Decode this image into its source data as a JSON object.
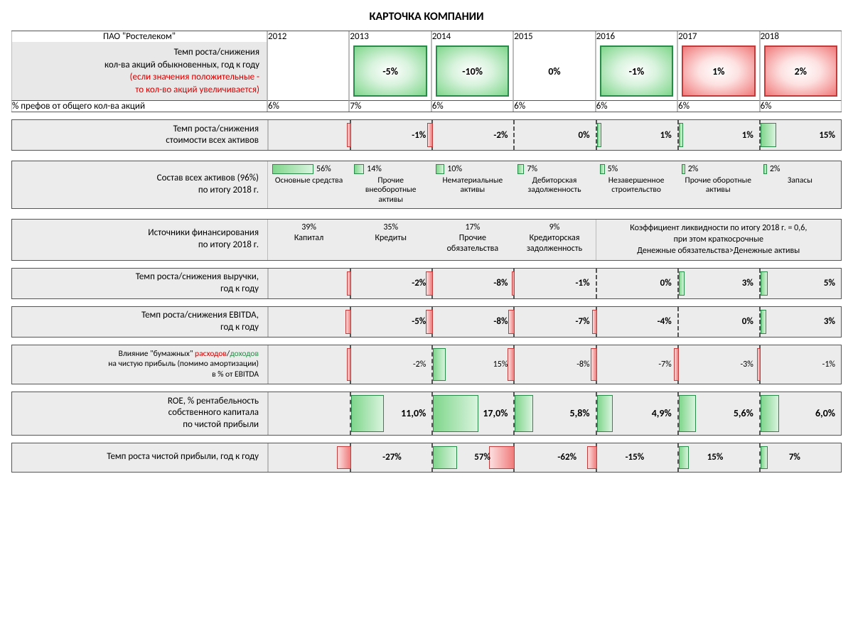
{
  "colors": {
    "green_fill": "#9ae09a",
    "green_border": "#2a8a4a",
    "green_grad_a": "#7fd68b",
    "green_grad_b": "#d9f3de",
    "red_fill": "#f59a9a",
    "red_border": "#c23a3a",
    "red_grad_a": "#f07a7a",
    "red_grad_b": "#fde1e1",
    "row_bg": "#ececec",
    "hdr_bg": "#e8e8e8"
  },
  "title": "КАРТОЧКА КОМПАНИИ",
  "company": "ПАО \"Ростелеком\"",
  "years": [
    "2012",
    "2013",
    "2014",
    "2015",
    "2016",
    "2017",
    "2018"
  ],
  "shares": {
    "label_1": "Темп роста/снижения",
    "label_2": "кол-ва акций обыкновенных,  год к году",
    "label_3": "(если значения положительные -",
    "label_4": "то кол-во акций увеличивается)",
    "vals": [
      "",
      "-5%",
      "-10%",
      "0%",
      "-1%",
      "1%",
      "2%"
    ],
    "colors": [
      "none",
      "green",
      "green",
      "none",
      "green",
      "red",
      "red"
    ]
  },
  "prefs": {
    "label": "% префов от общего кол-ва акций",
    "vals": [
      "6%",
      "7%",
      "6%",
      "6%",
      "6%",
      "6%",
      "6%"
    ]
  },
  "assets_growth": {
    "label_1": "Темп роста/снижения",
    "label_2": "стоимости всех активов",
    "vals": [
      "",
      "-1%",
      "-2%",
      "0%",
      "1%",
      "1%",
      "15%"
    ],
    "dir": [
      0,
      -1,
      -1,
      0,
      1,
      1,
      1
    ],
    "widths": [
      0,
      6,
      8,
      2,
      6,
      6,
      22
    ]
  },
  "assets_comp": {
    "label_1": "Состав всех активов (96%)",
    "label_2": "по итогу 2018 г.",
    "items": [
      {
        "pct": "56%",
        "w": 58,
        "name": "Основные средства"
      },
      {
        "pct": "14%",
        "w": 14,
        "name": "Прочие внеоборотные активы"
      },
      {
        "pct": "10%",
        "w": 12,
        "name": "Нематериальные активы"
      },
      {
        "pct": "7%",
        "w": 9,
        "name": "Дебиторская задолженность"
      },
      {
        "pct": "5%",
        "w": 7,
        "name": "Незавершенное строительство"
      },
      {
        "pct": "2%",
        "w": 5,
        "name": "Прочие оборотные активы"
      },
      {
        "pct": "2%",
        "w": 5,
        "name": "Запасы"
      }
    ]
  },
  "fin_sources": {
    "label_1": "Источники финансирования",
    "label_2": "по итогу 2018 г.",
    "items": [
      {
        "pct": "39%",
        "name": "Капитал"
      },
      {
        "pct": "35%",
        "name": "Кредиты"
      },
      {
        "pct": "17%",
        "name": "Прочие обязательства"
      },
      {
        "pct": "9%",
        "name": "Кредиторская задолженность"
      }
    ],
    "note_1": "Коэффициент ликвидности по итогу 2018 г. = 0,6,",
    "note_2": "при этом краткосрочные",
    "note_3": "Денежные обязательства>Денежные активы"
  },
  "revenue": {
    "label_1": "Темп роста/снижения выручки,",
    "label_2": "год к году",
    "vals": [
      "",
      "-2%",
      "-8%",
      "-1%",
      "0%",
      "3%",
      "5%"
    ],
    "dir": [
      0,
      -1,
      -1,
      -1,
      0,
      1,
      1
    ],
    "widths": [
      0,
      6,
      10,
      4,
      2,
      8,
      10
    ]
  },
  "ebitda": {
    "label_1": "Темп роста/снижения EBITDA,",
    "label_2": "год к году",
    "vals": [
      "",
      "-5%",
      "-8%",
      "-7%",
      "-4%",
      "0%",
      "3%"
    ],
    "dir": [
      0,
      -1,
      -1,
      -1,
      -1,
      0,
      1
    ],
    "widths": [
      0,
      8,
      10,
      9,
      7,
      2,
      8
    ]
  },
  "paper": {
    "label_1": "Влияние \"бумажных\" ",
    "label_red": "расходов",
    "label_slash": "/",
    "label_green": "доходов",
    "label_2": "на чистую прибыль (помимо амортизации)",
    "label_3": "в % от EBITDA",
    "vals": [
      "",
      "-2%",
      "15%",
      "-8%",
      "-7%",
      "-3%",
      "-1%"
    ],
    "dir": [
      0,
      -1,
      1,
      -1,
      -1,
      -1,
      -1
    ],
    "widths": [
      0,
      6,
      18,
      10,
      9,
      7,
      5
    ]
  },
  "roe": {
    "label_1": "ROE, % рентабельность",
    "label_2": "собственного капитала",
    "label_3": "по чистой прибыли",
    "vals": [
      "",
      "11,0%",
      "17,0%",
      "5,8%",
      "4,9%",
      "5,6%",
      "6,0%"
    ],
    "widths": [
      0,
      46,
      64,
      26,
      22,
      24,
      26
    ]
  },
  "netprofit": {
    "label": "Темп роста чистой прибыли, год к году",
    "vals": [
      "",
      "-27%",
      "57%",
      "-62%",
      "-15%",
      "15%",
      "7%"
    ],
    "dir": [
      0,
      -1,
      1,
      -1,
      -1,
      1,
      1
    ],
    "widths": [
      0,
      20,
      34,
      36,
      14,
      14,
      10
    ]
  }
}
